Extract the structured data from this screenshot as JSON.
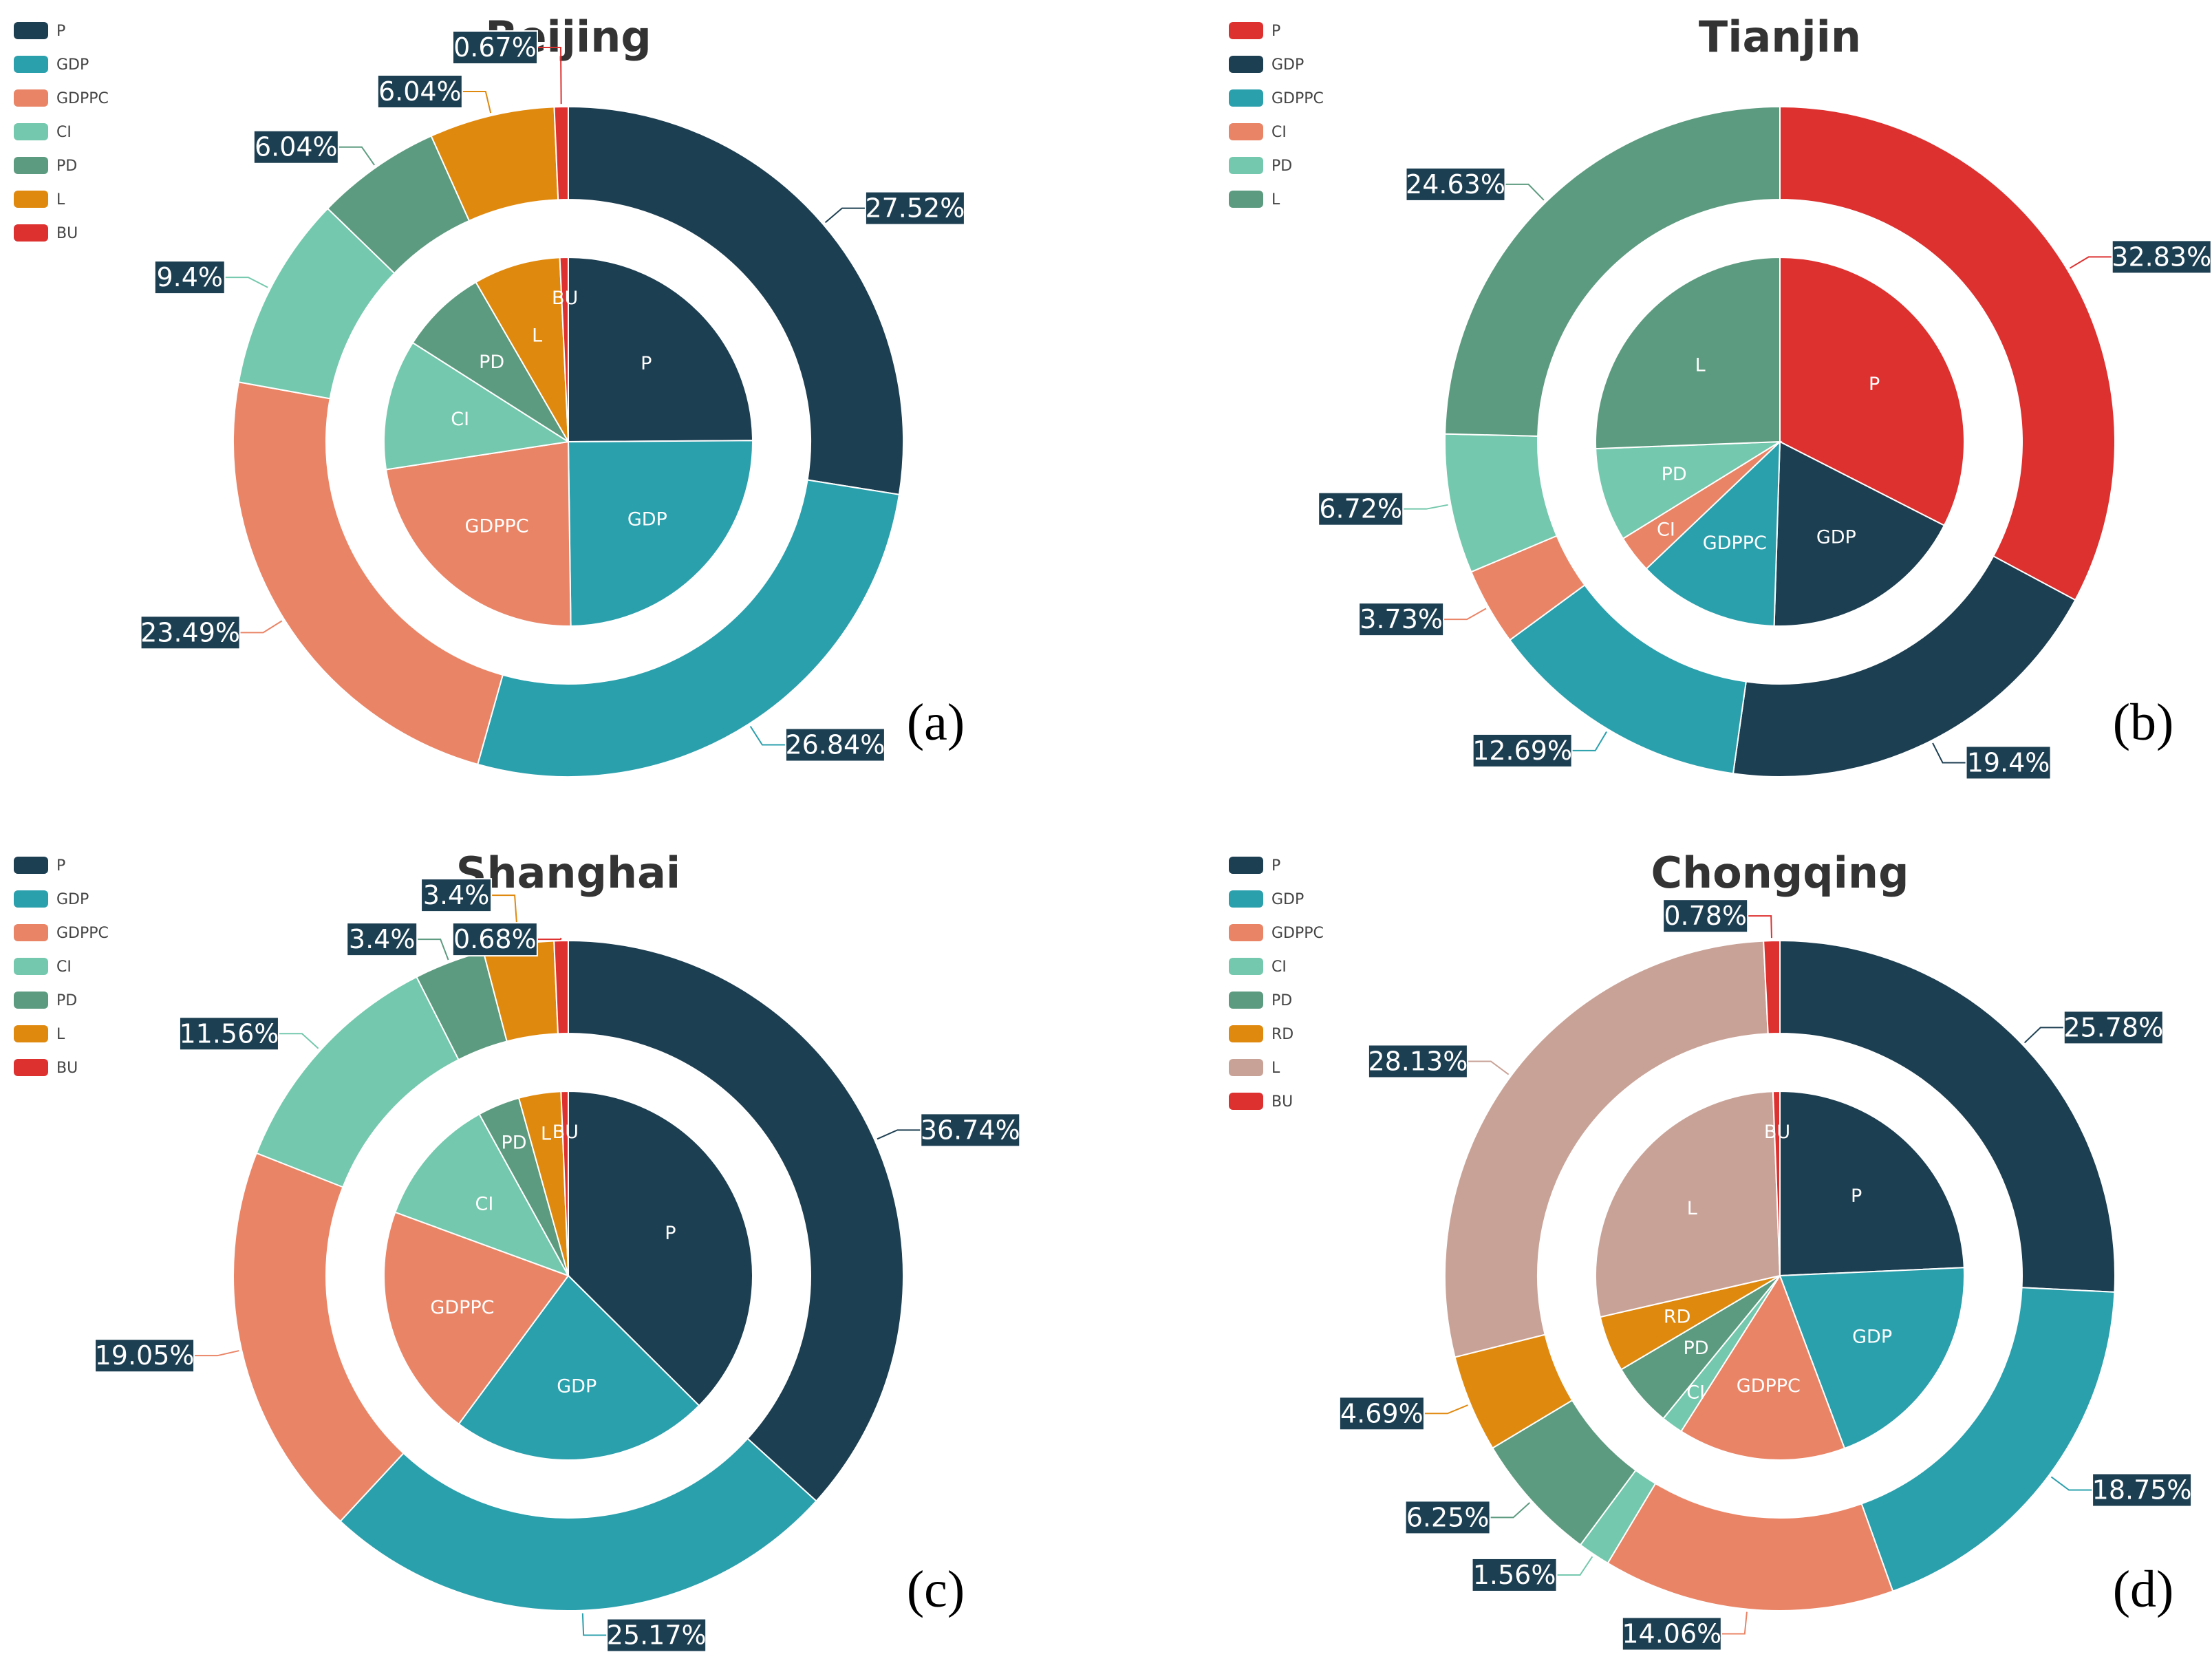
{
  "chart_data": [
    {
      "type": "pie",
      "title": "Beijing",
      "panel": "(a)",
      "categories": [
        "P",
        "GDP",
        "GDPPC",
        "CI",
        "PD",
        "L",
        "BU"
      ],
      "legend": [
        "P",
        "GDP",
        "GDPPC",
        "CI",
        "PD",
        "L",
        "BU"
      ],
      "colors": [
        "#1d3f52",
        "#2ba0ad",
        "#ea8466",
        "#74c8ad",
        "#5d9b80",
        "#e0890f",
        "#dd3130"
      ],
      "outer_values": [
        27.52,
        26.84,
        23.49,
        9.4,
        6.04,
        6.04,
        0.67
      ],
      "outer_labels": [
        "27.52%",
        "26.84%",
        "23.49%",
        "9.4%",
        "6.04%",
        "6.04%",
        "0.67%"
      ],
      "inner_values": [
        20.25,
        20.25,
        18.55,
        9.3,
        6.2,
        6.2,
        0.6
      ],
      "inner_labels": [
        "P",
        "GDP",
        "GDPPC",
        "CI",
        "PD",
        "L",
        "BU"
      ],
      "legend_placement": "top-left"
    },
    {
      "type": "pie",
      "title": "Tianjin",
      "panel": "(b)",
      "categories": [
        "P",
        "GDP",
        "GDPPC",
        "CI",
        "PD",
        "L"
      ],
      "legend": [
        "P",
        "GDP",
        "GDPPC",
        "CI",
        "PD",
        "L"
      ],
      "colors": [
        "#dd3130",
        "#1d3f52",
        "#2ba0ad",
        "#ea8466",
        "#74c8ad",
        "#5d9b80"
      ],
      "outer_values": [
        32.83,
        19.4,
        12.69,
        3.73,
        6.72,
        24.63
      ],
      "outer_labels": [
        "32.83%",
        "19.4%",
        "12.69%",
        "3.73%",
        "6.72%",
        "24.63%"
      ],
      "inner_values": [
        32.5,
        18,
        12.4,
        3.3,
        8.2,
        25.6
      ],
      "inner_labels": [
        "P",
        "GDP",
        "GDPPC",
        "CI",
        "PD",
        "L"
      ],
      "legend_placement": "top-left"
    },
    {
      "type": "pie",
      "title": "Shanghai",
      "panel": "(c)",
      "categories": [
        "P",
        "GDP",
        "GDPPC",
        "CI",
        "PD",
        "L",
        "BU"
      ],
      "legend": [
        "P",
        "GDP",
        "GDPPC",
        "CI",
        "PD",
        "L",
        "BU"
      ],
      "colors": [
        "#1d3f52",
        "#2ba0ad",
        "#ea8466",
        "#74c8ad",
        "#5d9b80",
        "#e0890f",
        "#dd3130"
      ],
      "outer_values": [
        36.74,
        25.17,
        19.05,
        11.56,
        3.4,
        3.4,
        0.68
      ],
      "outer_labels": [
        "36.74%",
        "25.17%",
        "19.05%",
        "11.56%",
        "3.4%",
        "3.4%",
        "0.68%"
      ],
      "inner_values": [
        35.5,
        21.5,
        19.4,
        10.8,
        3.5,
        3.5,
        0.6
      ],
      "inner_labels": [
        "P",
        "GDP",
        "GDPPC",
        "CI",
        "PD",
        "L",
        "BU"
      ],
      "legend_placement": "top-left"
    },
    {
      "type": "pie",
      "title": "Chongqing",
      "panel": "(d)",
      "categories": [
        "P",
        "GDP",
        "GDPPC",
        "CI",
        "PD",
        "RD",
        "L",
        "BU"
      ],
      "legend": [
        "P",
        "GDP",
        "GDPPC",
        "CI",
        "PD",
        "RD",
        "L",
        "BU"
      ],
      "colors": [
        "#1d3f52",
        "#2ba0ad",
        "#ea8466",
        "#74c8ad",
        "#5d9b80",
        "#e0890f",
        "#c9a297",
        "#dd3130"
      ],
      "outer_values": [
        25.78,
        18.75,
        14.06,
        1.56,
        6.25,
        4.69,
        28.13,
        0.78
      ],
      "outer_labels": [
        "25.78%",
        "18.75%",
        "14.06%",
        "1.56%",
        "6.25%",
        "4.69%",
        "28.13%",
        "0.78%"
      ],
      "inner_values": [
        24.3,
        20,
        14.7,
        1.9,
        5.6,
        4.9,
        28,
        0.6
      ],
      "inner_labels": [
        "P",
        "GDP",
        "GDPPC",
        "CI",
        "PD",
        "RD",
        "L",
        "BU"
      ],
      "legend_placement": "top-left"
    }
  ]
}
